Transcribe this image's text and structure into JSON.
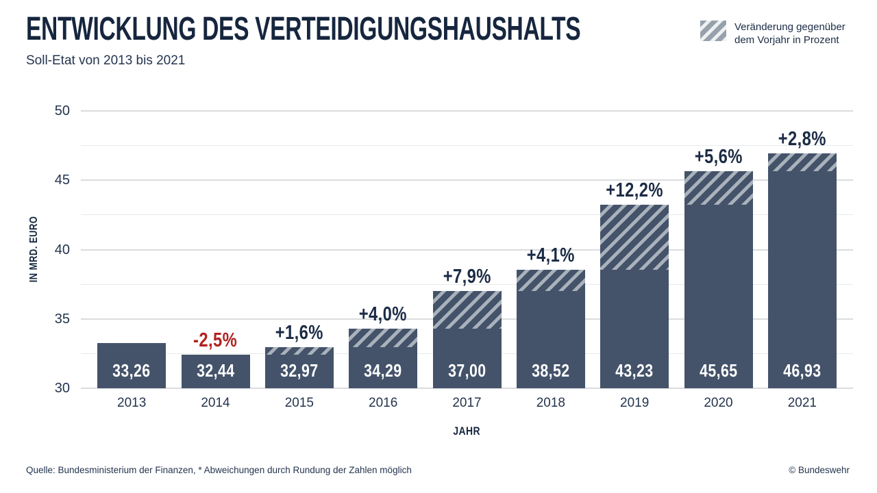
{
  "header": {
    "title": "ENTWICKLUNG DES VERTEIDIGUNGSHAUSHALTS",
    "subtitle": "Soll-Etat von 2013 bis 2021"
  },
  "legend": {
    "line1": "Veränderung gegenüber",
    "line2": "dem Vorjahr in Prozent"
  },
  "chart_data": {
    "type": "bar",
    "title": "ENTWICKLUNG DES VERTEIDIGUNGSHAUSHALTS",
    "subtitle": "Soll-Etat von 2013 bis 2021",
    "categories": [
      "2013",
      "2014",
      "2015",
      "2016",
      "2017",
      "2018",
      "2019",
      "2020",
      "2021"
    ],
    "values": [
      33.26,
      32.44,
      32.97,
      34.29,
      37.0,
      38.52,
      43.23,
      45.65,
      46.93
    ],
    "bar_value_labels": [
      "33,26",
      "32,44",
      "32,97",
      "34,29",
      "37,00",
      "38,52",
      "43,23",
      "45,65",
      "46,93"
    ],
    "change_vs_prev_year_pct": [
      null,
      -2.5,
      1.6,
      4.0,
      7.9,
      4.1,
      12.2,
      5.6,
      2.8
    ],
    "change_labels": [
      "",
      "-2,5%",
      "+1,6%",
      "+4,0%",
      "+7,9%",
      "+4,1%",
      "+12,2%",
      "+5,6%",
      "+2,8%"
    ],
    "xlabel": "JAHR",
    "ylabel": "IN MRD. EURO",
    "ylim": [
      30,
      50
    ],
    "yticks": [
      30,
      35,
      40,
      45,
      50
    ],
    "grid_step": 2.5,
    "grid": "horizontal",
    "legend": "Veränderung gegenüber dem Vorjahr in Prozent",
    "legend_position": "top-right",
    "hatch_note": "hatched bar top = increase vs previous year"
  },
  "footer": {
    "source": "Quelle: Bundesministerium der Finanzen, * Abweichungen durch Rundung der Zahlen möglich",
    "copyright": "© Bundeswehr"
  },
  "colors": {
    "bar": "#44536a",
    "hatch_dark": "#44536a",
    "hatch_light": "#a9b2bb",
    "legend_hatch_gray": "#97a1ab",
    "legend_hatch_light": "#eef0f2",
    "title_text": "#16263e",
    "body_text": "#24344e",
    "legend_text": "#1b2b45",
    "positive_label": "#1b2b45",
    "negative_red": "#b1221f",
    "grid_major": "#d9dbdd",
    "grid_minor": "#e8e9ea",
    "bar_value_text": "#ffffff"
  }
}
